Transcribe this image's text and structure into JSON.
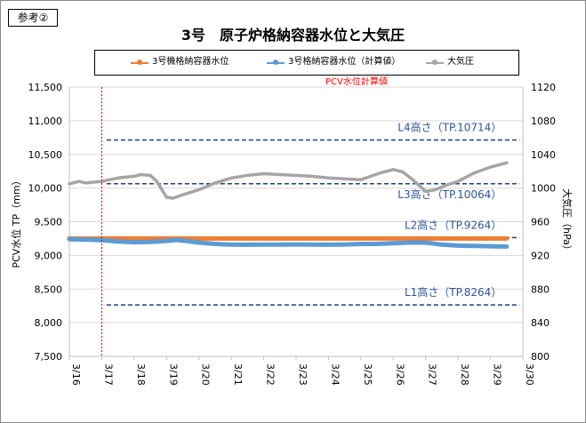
{
  "ref_tag": "参考②",
  "title": "3号　原子炉格納容器水位と大気圧",
  "legend": [
    {
      "label": "3号機格納容器水位",
      "color": "#ed7d31"
    },
    {
      "label": "3号格納容器水位（計算値）",
      "color": "#5b9bd5"
    },
    {
      "label": "大気圧",
      "color": "#a5a5a5"
    }
  ],
  "note": "PCV水位計算値",
  "chart_data": {
    "type": "line",
    "title": "3号　原子炉格納容器水位と大気圧",
    "xlabel": "",
    "ylabel": "PCV水位 TP（mm）",
    "y2label": "大気圧（hPa）",
    "x_ticks": [
      "3/16",
      "3/17",
      "3/18",
      "3/19",
      "3/20",
      "3/21",
      "3/22",
      "3/23",
      "3/24",
      "3/25",
      "3/26",
      "3/27",
      "3/28",
      "3/29",
      "3/30"
    ],
    "xlim": [
      "3/16",
      "3/30"
    ],
    "ylim": [
      7500,
      11500
    ],
    "y_ticks": [
      "7,500",
      "8,000",
      "8,500",
      "9,000",
      "9,500",
      "10,000",
      "10,500",
      "11,000",
      "11,500"
    ],
    "y2lim": [
      800,
      1120
    ],
    "y2_ticks": [
      "800",
      "840",
      "880",
      "920",
      "960",
      "1000",
      "1040",
      "1080",
      "1120"
    ],
    "grid": true,
    "legend_position": "top",
    "series": [
      {
        "name": "3号機格納容器水位",
        "axis": "left",
        "color": "#ed7d31",
        "x": [
          0,
          1,
          2,
          3,
          4,
          5,
          6,
          7,
          8,
          9,
          10,
          11,
          12,
          13,
          13.5
        ],
        "y": [
          9250,
          9250,
          9250,
          9250,
          9250,
          9250,
          9250,
          9250,
          9250,
          9250,
          9250,
          9250,
          9250,
          9250,
          9250
        ]
      },
      {
        "name": "3号格納容器水位（計算値）",
        "axis": "left",
        "color": "#5b9bd5",
        "x": [
          0,
          0.5,
          1,
          1.5,
          2,
          2.5,
          3,
          3.3,
          3.6,
          4,
          4.5,
          5,
          5.5,
          6,
          6.5,
          7,
          7.5,
          8,
          8.5,
          9,
          9.5,
          10,
          10.5,
          11,
          11.5,
          12,
          12.5,
          13,
          13.5
        ],
        "y": [
          9240,
          9235,
          9225,
          9205,
          9195,
          9200,
          9215,
          9230,
          9215,
          9190,
          9170,
          9160,
          9158,
          9160,
          9160,
          9162,
          9160,
          9158,
          9162,
          9170,
          9170,
          9180,
          9190,
          9190,
          9160,
          9145,
          9140,
          9135,
          9130
        ]
      },
      {
        "name": "大気圧",
        "axis": "right",
        "color": "#a5a5a5",
        "x": [
          0,
          0.3,
          0.5,
          1,
          1.5,
          2,
          2.2,
          2.5,
          2.7,
          3,
          3.2,
          3.5,
          4,
          4.5,
          5,
          5.5,
          6,
          6.5,
          7,
          7.5,
          8,
          8.5,
          9,
          9.3,
          9.6,
          10,
          10.3,
          10.6,
          11,
          11.3,
          11.6,
          12,
          12.5,
          13,
          13.5
        ],
        "y": [
          1005,
          1008,
          1006,
          1008,
          1012,
          1014,
          1016,
          1015,
          1008,
          989,
          988,
          992,
          998,
          1006,
          1012,
          1015,
          1017,
          1016,
          1015,
          1014,
          1012,
          1011,
          1010,
          1014,
          1018,
          1022,
          1019,
          1010,
          996,
          998,
          1003,
          1008,
          1018,
          1025,
          1030
        ]
      }
    ],
    "reference_lines": [
      {
        "label": "L4高さ（TP.10714）",
        "value": 10714
      },
      {
        "label": "L3高さ（TP.10064）",
        "value": 10064
      },
      {
        "label": "L2高さ（TP.9264）",
        "value": 9264
      },
      {
        "label": "L1高さ（TP.8264）",
        "value": 8264
      }
    ],
    "marker_line": {
      "x": 1,
      "color": "#ff0000"
    }
  }
}
